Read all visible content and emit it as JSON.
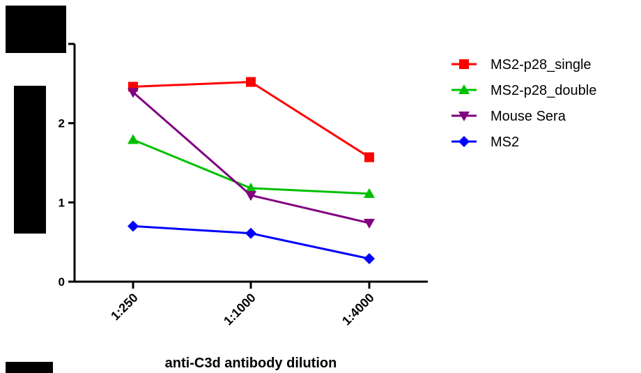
{
  "chart_data": {
    "type": "line",
    "categories": [
      "1:250",
      "1:1000",
      "1:4000"
    ],
    "series": [
      {
        "name": "MS2-p28_single",
        "values": [
          2.46,
          2.52,
          1.57
        ],
        "color": "#ff0000",
        "marker": "square"
      },
      {
        "name": "MS2-p28_double",
        "values": [
          1.79,
          1.18,
          1.11
        ],
        "color": "#00c000",
        "marker": "triangle-up"
      },
      {
        "name": "Mouse Sera",
        "values": [
          2.39,
          1.09,
          0.74
        ],
        "color": "#800080",
        "marker": "triangle-down"
      },
      {
        "name": "MS2",
        "values": [
          0.7,
          0.61,
          0.29
        ],
        "color": "#0000ff",
        "marker": "diamond"
      }
    ],
    "xlabel": "anti-C3d antibody dilution",
    "ylabel": "",
    "ylim": [
      0,
      3
    ],
    "yticks": [
      "0",
      "1",
      "2"
    ],
    "grid": false,
    "legend": "right",
    "redaction_color": "#000000"
  }
}
